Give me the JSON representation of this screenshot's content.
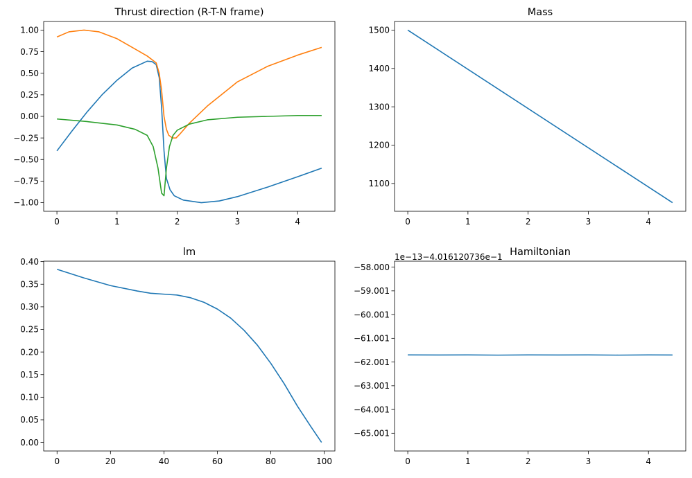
{
  "chart_data": [
    {
      "type": "line",
      "title": "Thrust direction (R-T-N frame)",
      "xlabel": "",
      "ylabel": "",
      "xlim": [
        -0.22,
        4.62
      ],
      "ylim": [
        -1.1,
        1.1
      ],
      "x_ticks": [
        0,
        1,
        2,
        3,
        4
      ],
      "y_ticks": [
        -1.0,
        -0.75,
        -0.5,
        -0.25,
        0.0,
        0.25,
        0.5,
        0.75,
        1.0
      ],
      "x_tick_labels": [
        "0",
        "1",
        "2",
        "3",
        "4"
      ],
      "y_tick_labels": [
        "−1.00",
        "−0.75",
        "−0.50",
        "−0.25",
        "0.00",
        "0.25",
        "0.50",
        "0.75",
        "1.00"
      ],
      "grid": false,
      "series": [
        {
          "color": "#1f77b4",
          "x": [
            0,
            0.25,
            0.5,
            0.75,
            1.0,
            1.25,
            1.5,
            1.58,
            1.65,
            1.7,
            1.74,
            1.78,
            1.82,
            1.88,
            1.95,
            2.1,
            2.4,
            2.7,
            3.0,
            3.5,
            4.0,
            4.4
          ],
          "y": [
            -0.4,
            -0.17,
            0.05,
            0.25,
            0.42,
            0.56,
            0.64,
            0.635,
            0.6,
            0.45,
            0.1,
            -0.4,
            -0.72,
            -0.85,
            -0.92,
            -0.97,
            -1.0,
            -0.98,
            -0.93,
            -0.82,
            -0.7,
            -0.6
          ]
        },
        {
          "color": "#ff7f0e",
          "x": [
            0,
            0.2,
            0.45,
            0.7,
            1.0,
            1.25,
            1.5,
            1.65,
            1.7,
            1.74,
            1.78,
            1.82,
            1.86,
            1.92,
            1.98,
            2.05,
            2.2,
            2.5,
            3.0,
            3.5,
            4.0,
            4.4
          ],
          "y": [
            0.92,
            0.98,
            1.0,
            0.98,
            0.9,
            0.8,
            0.7,
            0.62,
            0.5,
            0.3,
            0.0,
            -0.15,
            -0.22,
            -0.25,
            -0.25,
            -0.2,
            -0.08,
            0.12,
            0.4,
            0.58,
            0.71,
            0.8
          ]
        },
        {
          "color": "#2ca02c",
          "x": [
            0,
            0.5,
            1.0,
            1.3,
            1.5,
            1.6,
            1.68,
            1.74,
            1.78,
            1.82,
            1.87,
            1.93,
            2.0,
            2.2,
            2.5,
            3.0,
            3.5,
            4.0,
            4.4
          ],
          "y": [
            -0.03,
            -0.06,
            -0.1,
            -0.15,
            -0.22,
            -0.35,
            -0.6,
            -0.89,
            -0.92,
            -0.6,
            -0.35,
            -0.22,
            -0.16,
            -0.09,
            -0.04,
            -0.01,
            0.0,
            0.01,
            0.01
          ]
        }
      ]
    },
    {
      "type": "line",
      "title": "Mass",
      "xlabel": "",
      "ylabel": "",
      "xlim": [
        -0.22,
        4.62
      ],
      "ylim": [
        1027.5,
        1522.5
      ],
      "x_ticks": [
        0,
        1,
        2,
        3,
        4
      ],
      "y_ticks": [
        1100,
        1200,
        1300,
        1400,
        1500
      ],
      "x_tick_labels": [
        "0",
        "1",
        "2",
        "3",
        "4"
      ],
      "y_tick_labels": [
        "1100",
        "1200",
        "1300",
        "1400",
        "1500"
      ],
      "grid": false,
      "series": [
        {
          "color": "#1f77b4",
          "x": [
            0,
            4.4
          ],
          "y": [
            1500,
            1050
          ]
        }
      ]
    },
    {
      "type": "line",
      "title": "lm",
      "xlabel": "",
      "ylabel": "",
      "xlim": [
        -5,
        104
      ],
      "ylim": [
        -0.019,
        0.401
      ],
      "x_ticks": [
        0,
        20,
        40,
        60,
        80,
        100
      ],
      "y_ticks": [
        0.0,
        0.05,
        0.1,
        0.15,
        0.2,
        0.25,
        0.3,
        0.35,
        0.4
      ],
      "x_tick_labels": [
        "0",
        "20",
        "40",
        "60",
        "80",
        "100"
      ],
      "y_tick_labels": [
        "0.00",
        "0.05",
        "0.10",
        "0.15",
        "0.20",
        "0.25",
        "0.30",
        "0.35",
        "0.40"
      ],
      "grid": false,
      "series": [
        {
          "color": "#1f77b4",
          "x": [
            0,
            10,
            20,
            30,
            35,
            40,
            45,
            50,
            55,
            60,
            65,
            70,
            75,
            80,
            85,
            90,
            95,
            99
          ],
          "y": [
            0.383,
            0.364,
            0.347,
            0.335,
            0.33,
            0.328,
            0.326,
            0.32,
            0.31,
            0.295,
            0.275,
            0.248,
            0.215,
            0.175,
            0.13,
            0.08,
            0.035,
            0.0
          ]
        }
      ]
    },
    {
      "type": "line",
      "title": "Hamiltonian",
      "offset_text": "1e−13−4.016120736e−1",
      "xlabel": "",
      "ylabel": "",
      "xlim": [
        -0.22,
        4.62
      ],
      "ylim": [
        -65.75,
        -57.75
      ],
      "x_ticks": [
        0,
        1,
        2,
        3,
        4
      ],
      "y_ticks": [
        -58.0,
        -59.001,
        -60.001,
        -61.001,
        -62.001,
        -63.001,
        -64.001,
        -65.001
      ],
      "x_tick_labels": [
        "0",
        "1",
        "2",
        "3",
        "4"
      ],
      "y_tick_labels": [
        "−58.000",
        "−59.001",
        "−60.001",
        "−61.001",
        "−62.001",
        "−63.001",
        "−64.001",
        "−65.001"
      ],
      "grid": false,
      "series": [
        {
          "color": "#1f77b4",
          "x": [
            0,
            0.5,
            1.0,
            1.5,
            2.0,
            2.5,
            3.0,
            3.5,
            4.0,
            4.4
          ],
          "y": [
            -61.7,
            -61.705,
            -61.7,
            -61.71,
            -61.7,
            -61.705,
            -61.7,
            -61.71,
            -61.7,
            -61.705
          ]
        }
      ]
    }
  ]
}
